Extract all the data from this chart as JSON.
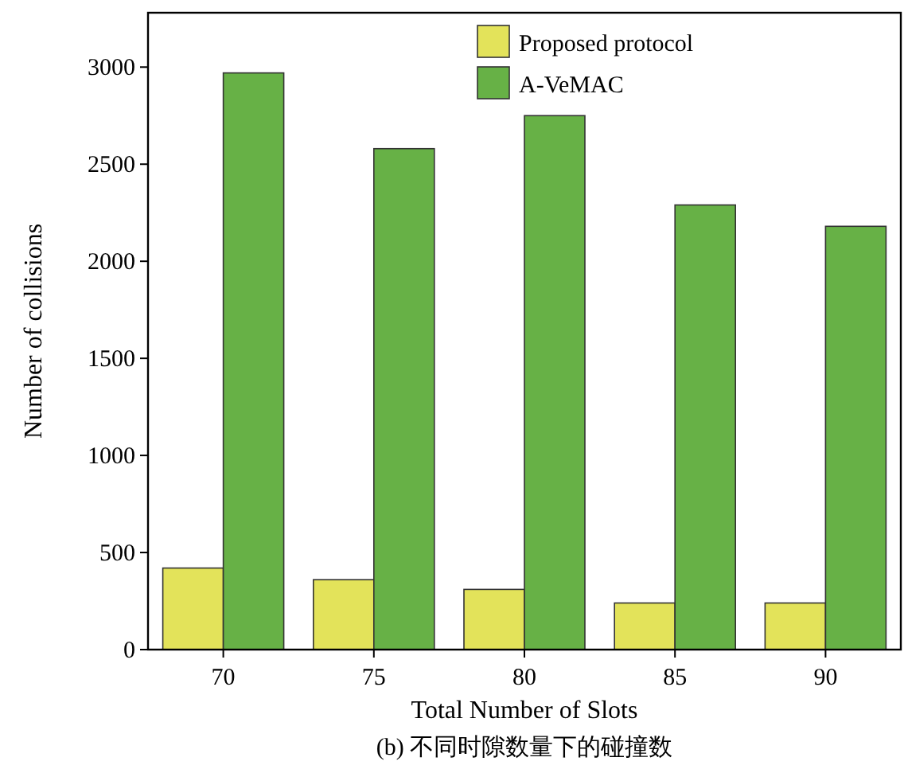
{
  "chart_data": {
    "type": "bar",
    "categories": [
      "70",
      "75",
      "80",
      "85",
      "90"
    ],
    "series": [
      {
        "name": "Proposed protocol",
        "color": "#e3e35a",
        "values": [
          420,
          360,
          310,
          240,
          240
        ]
      },
      {
        "name": "A-VeMAC",
        "color": "#67b146",
        "values": [
          2970,
          2580,
          2750,
          2290,
          2180
        ]
      }
    ],
    "xlabel": "Total Number of Slots",
    "ylabel": "Number of collisions",
    "ylim": [
      0,
      3280
    ],
    "yticks": [
      0,
      500,
      1000,
      1500,
      2000,
      2500,
      3000
    ],
    "legend": "top right",
    "annotations": [
      "(b) 不同时隙数量下的碰撞数"
    ]
  }
}
